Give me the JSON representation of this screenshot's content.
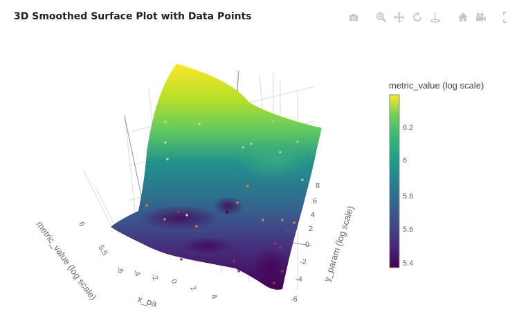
{
  "title": "3D Smoothed Surface Plot with Data Points",
  "modebar": {
    "buttons": [
      {
        "name": "camera-icon"
      },
      {
        "name": "zoom-icon"
      },
      {
        "name": "pan-icon"
      },
      {
        "name": "orbit-icon"
      },
      {
        "name": "turntable-icon"
      },
      {
        "name": "home-icon"
      },
      {
        "name": "video-camera-icon"
      },
      {
        "name": "fullscreen-icon"
      }
    ],
    "color": "#c4c8cf"
  },
  "chart_data": {
    "type": "surface",
    "colorscale": "Viridis",
    "colors": [
      "#440154",
      "#3b528b",
      "#21918c",
      "#5ec962",
      "#fde725"
    ],
    "axes": {
      "x": {
        "label": "x_param (log scale)",
        "ticks": [
          "-6",
          "-4",
          "-2",
          "0",
          "2",
          "4"
        ]
      },
      "y": {
        "label": "y_param (log scale)",
        "ticks": [
          "-6",
          "-4",
          "-2",
          "0",
          "2",
          "4",
          "6",
          "8"
        ]
      },
      "z": {
        "label": "metric_value (log scale)",
        "ticks": [
          "5.5",
          "6"
        ]
      }
    },
    "colorbar": {
      "title": "metric_value (log scale)",
      "range": [
        5.36,
        6.37
      ],
      "ticks": [
        "6.2",
        "6",
        "5.8",
        "5.6",
        "5.4"
      ]
    },
    "xlabel_visible": "x_pa"
  }
}
